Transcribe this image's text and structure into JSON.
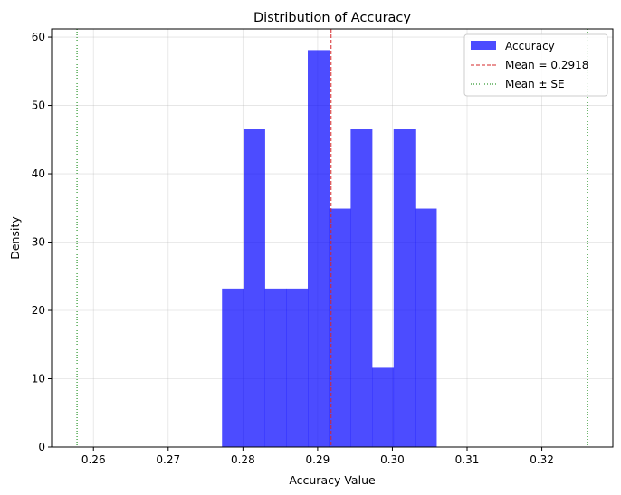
{
  "chart_data": {
    "type": "bar",
    "title": "Distribution of Accuracy",
    "xlabel": "Accuracy Value",
    "ylabel": "Density",
    "xlim": [
      0.2544,
      0.3295
    ],
    "ylim": [
      0,
      61.2
    ],
    "xticks": [
      "0.26",
      "0.27",
      "0.28",
      "0.29",
      "0.30",
      "0.31",
      "0.32"
    ],
    "yticks": [
      "0",
      "10",
      "20",
      "30",
      "40",
      "50",
      "60"
    ],
    "grid": true,
    "legend_placement": "top-right",
    "bin_start": 0.2772,
    "bin_width": 0.00287,
    "values": [
      23.2,
      46.5,
      23.2,
      23.2,
      58.1,
      34.9,
      46.5,
      11.6,
      46.5,
      34.9
    ],
    "bar_color": "#0000ff",
    "mean": 0.2918,
    "mean_color": "#d62728",
    "se_lines": [
      0.2578,
      0.3261
    ],
    "se_color": "#008000",
    "legend": [
      "Accuracy",
      "Mean = 0.2918",
      "Mean ± SE"
    ]
  }
}
